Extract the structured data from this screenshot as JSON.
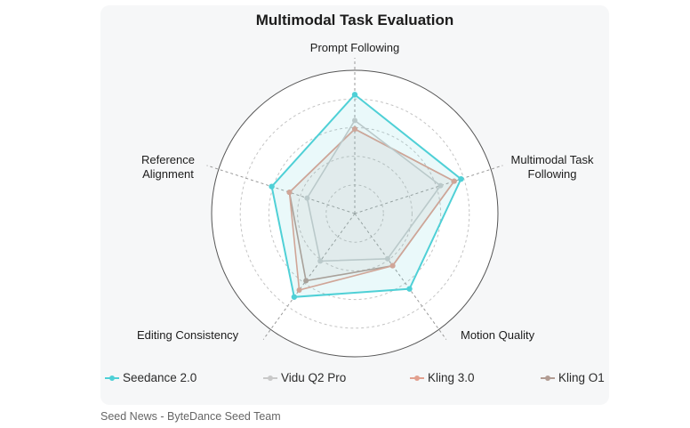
{
  "caption": "Seed News - ByteDance Seed Team",
  "chart_data": {
    "type": "radar",
    "title": "Multimodal Task Evaluation",
    "axes": [
      "Prompt Following",
      "Multimodal Task Following",
      "Motion Quality",
      "Editing Consistency",
      "Reference Alignment"
    ],
    "range": [
      0,
      100
    ],
    "grid": true,
    "legend_position": "bottom",
    "series": [
      {
        "name": "Seedance 2.0",
        "color": "#4fd0d6",
        "values": [
          83,
          78,
          65,
          72,
          61
        ]
      },
      {
        "name": "Vidu Q2 Pro",
        "color": "#c9c9c9",
        "values": [
          65,
          63,
          39,
          41,
          35
        ]
      },
      {
        "name": "Kling 3.0",
        "color": "#e2a08f",
        "values": [
          59,
          73,
          45,
          66,
          48
        ]
      },
      {
        "name": "Kling O1",
        "color": "#b29c93",
        "values": [
          59,
          73,
          45,
          58,
          48
        ]
      }
    ]
  }
}
